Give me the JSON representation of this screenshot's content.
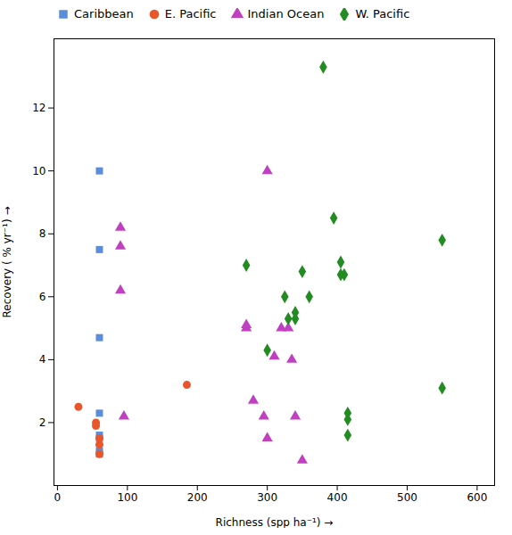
{
  "chart_data": {
    "type": "scatter",
    "xlabel": "Richness (spp ha⁻¹)",
    "ylabel": "Recovery ( % yr⁻¹)",
    "xlim": [
      -5,
      625
    ],
    "ylim": [
      0,
      14.2
    ],
    "xticks": [
      0,
      100,
      200,
      300,
      400,
      500,
      600
    ],
    "yticks": [
      2,
      4,
      6,
      8,
      10,
      12
    ],
    "grid": false,
    "legend": "upper left",
    "series": [
      {
        "name": "Caribbean",
        "color": "#5B8DD9",
        "marker": "square",
        "x": [
          60,
          60,
          60,
          60,
          60,
          60,
          60,
          60
        ],
        "values": [
          10.0,
          7.5,
          4.7,
          2.3,
          1.6,
          1.5,
          1.1,
          1.0
        ]
      },
      {
        "name": "E. Pacific",
        "color": "#E8562A",
        "marker": "circle",
        "x": [
          30,
          55,
          55,
          60,
          60,
          60,
          185
        ],
        "values": [
          2.5,
          2.0,
          1.9,
          1.5,
          1.3,
          1.0,
          3.2
        ]
      },
      {
        "name": "Indian Ocean",
        "color": "#C040C0",
        "marker": "triangle",
        "x": [
          90,
          90,
          90,
          95,
          300,
          270,
          270,
          280,
          295,
          300,
          310,
          320,
          330,
          335,
          340,
          350
        ],
        "values": [
          8.2,
          7.6,
          6.2,
          2.2,
          10.0,
          5.1,
          5.0,
          2.7,
          2.2,
          1.5,
          4.1,
          5.0,
          5.0,
          4.0,
          2.2,
          0.8
        ]
      },
      {
        "name": "W. Pacific",
        "color": "#228B22",
        "marker": "diamond",
        "x": [
          270,
          300,
          325,
          330,
          340,
          340,
          350,
          360,
          380,
          395,
          405,
          405,
          410,
          415,
          415,
          415,
          550,
          550
        ],
        "values": [
          7.0,
          4.3,
          6.0,
          5.3,
          5.5,
          5.3,
          6.8,
          6.0,
          13.3,
          8.5,
          7.1,
          6.7,
          6.7,
          2.3,
          2.1,
          1.6,
          7.8,
          3.1
        ]
      }
    ]
  }
}
